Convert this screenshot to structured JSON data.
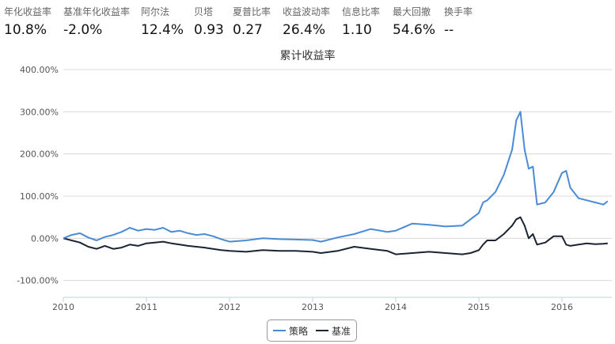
{
  "metrics": [
    {
      "label": "年化收益率",
      "value": "10.8%"
    },
    {
      "label": "基准年化收益率",
      "value": "-2.0%"
    },
    {
      "label": "阿尔法",
      "value": "12.4%"
    },
    {
      "label": "贝塔",
      "value": "0.93"
    },
    {
      "label": "夏普比率",
      "value": "0.27"
    },
    {
      "label": "收益波动率",
      "value": "26.4%"
    },
    {
      "label": "信息比率",
      "value": "1.10"
    },
    {
      "label": "最大回撤",
      "value": "54.6%"
    },
    {
      "label": "换手率",
      "value": "--"
    }
  ],
  "colors": {
    "strategy": "#4a8bd6",
    "benchmark": "#1a2433",
    "grid": "#d8d8d8",
    "axis": "#c0d0e0"
  },
  "chart_data": {
    "type": "line",
    "title": "累计收益率",
    "xlabel": "",
    "ylabel": "",
    "x_ticks": [
      "2010",
      "2011",
      "2012",
      "2013",
      "2014",
      "2015",
      "2016"
    ],
    "y_ticks": [
      "-100.00%",
      "0.00%",
      "100.00%",
      "200.00%",
      "300.00%",
      "400.00%"
    ],
    "xlim": [
      2010.0,
      2016.6
    ],
    "ylim": [
      -140,
      400
    ],
    "grid": true,
    "legend": "bottom-center",
    "series": [
      {
        "name": "策略",
        "color": "#4a8bd6",
        "x": [
          2010.0,
          2010.1,
          2010.2,
          2010.3,
          2010.4,
          2010.5,
          2010.6,
          2010.7,
          2010.8,
          2010.9,
          2011.0,
          2011.1,
          2011.2,
          2011.3,
          2011.4,
          2011.5,
          2011.6,
          2011.7,
          2011.8,
          2011.9,
          2012.0,
          2012.2,
          2012.4,
          2012.6,
          2012.8,
          2013.0,
          2013.1,
          2013.3,
          2013.5,
          2013.7,
          2013.9,
          2014.0,
          2014.2,
          2014.4,
          2014.6,
          2014.8,
          2014.9,
          2015.0,
          2015.05,
          2015.1,
          2015.2,
          2015.3,
          2015.4,
          2015.45,
          2015.5,
          2015.55,
          2015.6,
          2015.65,
          2015.7,
          2015.8,
          2015.9,
          2016.0,
          2016.05,
          2016.1,
          2016.2,
          2016.3,
          2016.4,
          2016.5,
          2016.55
        ],
        "values": [
          0,
          8,
          12,
          2,
          -5,
          3,
          8,
          15,
          25,
          18,
          22,
          20,
          25,
          15,
          18,
          12,
          8,
          10,
          5,
          -2,
          -8,
          -5,
          0,
          -2,
          -3,
          -4,
          -8,
          2,
          10,
          22,
          15,
          18,
          35,
          32,
          28,
          30,
          45,
          60,
          85,
          90,
          110,
          150,
          210,
          280,
          300,
          210,
          165,
          170,
          80,
          85,
          110,
          155,
          160,
          120,
          95,
          90,
          85,
          80,
          88
        ]
      },
      {
        "name": "基准",
        "color": "#1a2433",
        "x": [
          2010.0,
          2010.1,
          2010.2,
          2010.3,
          2010.4,
          2010.5,
          2010.6,
          2010.7,
          2010.8,
          2010.9,
          2011.0,
          2011.1,
          2011.2,
          2011.3,
          2011.4,
          2011.5,
          2011.6,
          2011.7,
          2011.8,
          2011.9,
          2012.0,
          2012.2,
          2012.4,
          2012.6,
          2012.8,
          2013.0,
          2013.1,
          2013.3,
          2013.5,
          2013.7,
          2013.9,
          2014.0,
          2014.2,
          2014.4,
          2014.6,
          2014.8,
          2014.9,
          2015.0,
          2015.05,
          2015.1,
          2015.2,
          2015.3,
          2015.4,
          2015.45,
          2015.5,
          2015.55,
          2015.6,
          2015.65,
          2015.7,
          2015.8,
          2015.9,
          2016.0,
          2016.05,
          2016.1,
          2016.2,
          2016.3,
          2016.4,
          2016.5,
          2016.55
        ],
        "values": [
          0,
          -5,
          -10,
          -20,
          -25,
          -18,
          -25,
          -22,
          -15,
          -18,
          -12,
          -10,
          -8,
          -12,
          -15,
          -18,
          -20,
          -22,
          -25,
          -28,
          -30,
          -32,
          -28,
          -30,
          -30,
          -32,
          -35,
          -30,
          -20,
          -25,
          -30,
          -38,
          -35,
          -32,
          -35,
          -38,
          -35,
          -28,
          -15,
          -5,
          -5,
          10,
          30,
          45,
          50,
          30,
          0,
          10,
          -15,
          -10,
          5,
          5,
          -15,
          -18,
          -15,
          -12,
          -14,
          -13,
          -12
        ]
      }
    ]
  }
}
